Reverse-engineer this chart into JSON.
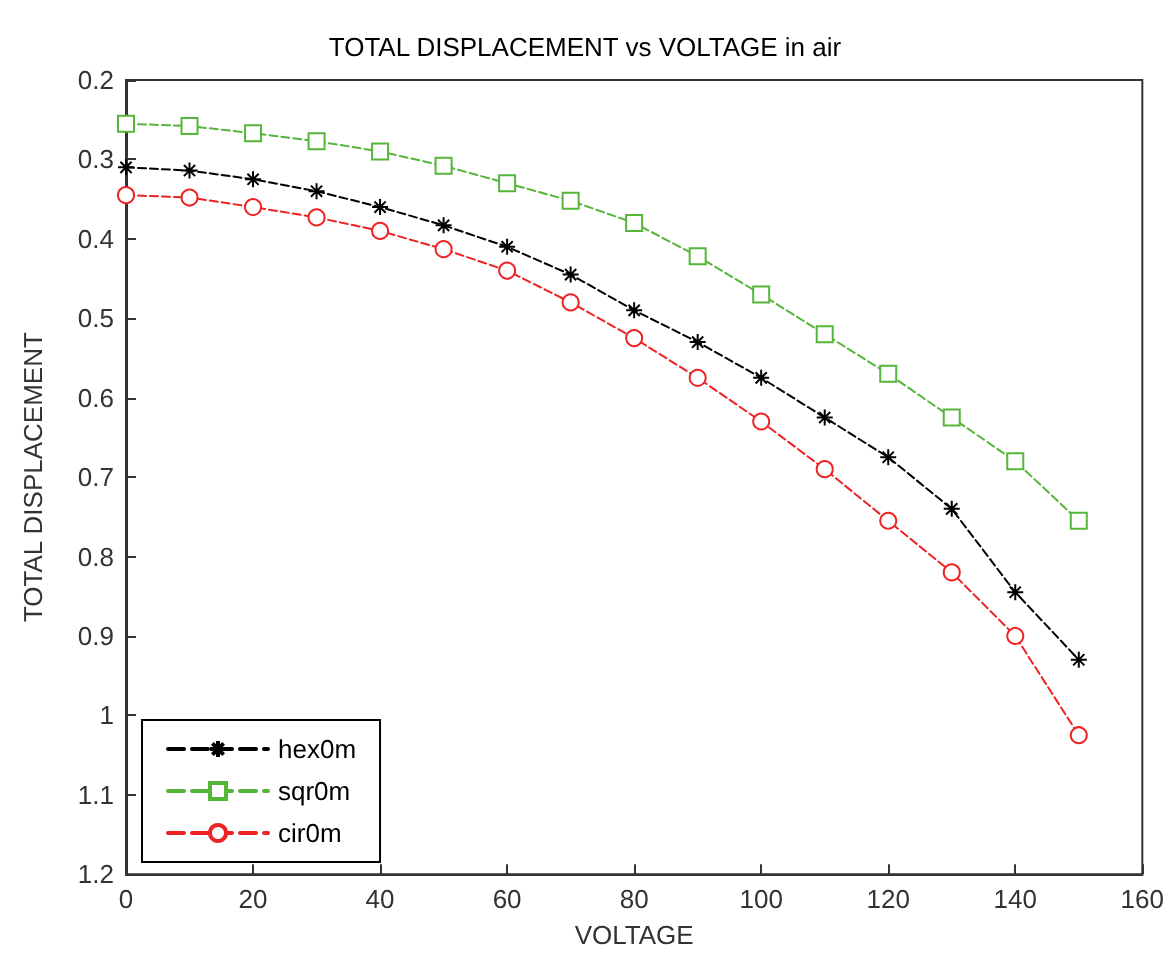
{
  "chart_data": {
    "type": "line",
    "title": "TOTAL DISPLACEMENT vs VOLTAGE in air",
    "xlabel": "VOLTAGE",
    "ylabel": "TOTAL DISPLACEMENT",
    "x": [
      0,
      10,
      20,
      30,
      40,
      50,
      60,
      70,
      80,
      90,
      100,
      110,
      120,
      130,
      140,
      150
    ],
    "series": [
      {
        "name": "hex0m",
        "color": "#000000",
        "marker": "cross",
        "values": [
          0.31,
          0.314,
          0.325,
          0.34,
          0.36,
          0.383,
          0.41,
          0.445,
          0.49,
          0.53,
          0.575,
          0.625,
          0.675,
          0.74,
          0.845,
          0.93
        ]
      },
      {
        "name": "sqr0m",
        "color": "#55b63a",
        "marker": "square",
        "values": [
          0.255,
          0.258,
          0.267,
          0.277,
          0.29,
          0.308,
          0.33,
          0.352,
          0.38,
          0.422,
          0.47,
          0.52,
          0.57,
          0.625,
          0.68,
          0.755
        ]
      },
      {
        "name": "cir0m",
        "color": "#ee2222",
        "marker": "circle",
        "values": [
          0.345,
          0.348,
          0.36,
          0.373,
          0.39,
          0.413,
          0.44,
          0.48,
          0.525,
          0.575,
          0.63,
          0.69,
          0.755,
          0.82,
          0.9,
          1.025
        ]
      }
    ],
    "xlim": [
      0,
      160
    ],
    "xticks": [
      0,
      20,
      40,
      60,
      80,
      100,
      120,
      140,
      160
    ],
    "ylim": [
      1.2,
      0.2
    ],
    "yticks": [
      0.2,
      0.3,
      0.4,
      0.5,
      0.6,
      0.7,
      0.8,
      0.9,
      1,
      1.1,
      1.2
    ],
    "grid": false,
    "legend": "bottom left",
    "line_style": "dashed"
  }
}
